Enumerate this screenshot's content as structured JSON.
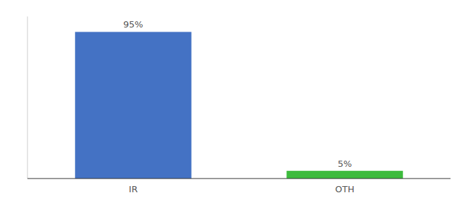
{
  "chart_data": {
    "type": "bar",
    "categories": [
      "IR",
      "OTH"
    ],
    "values": [
      95,
      5
    ],
    "value_labels": [
      "95%",
      "5%"
    ],
    "colors": [
      "#4472c4",
      "#3dbb3d"
    ],
    "ylim": [
      0,
      105
    ],
    "data_labels": true,
    "tick_labels": "x",
    "grid": false
  }
}
